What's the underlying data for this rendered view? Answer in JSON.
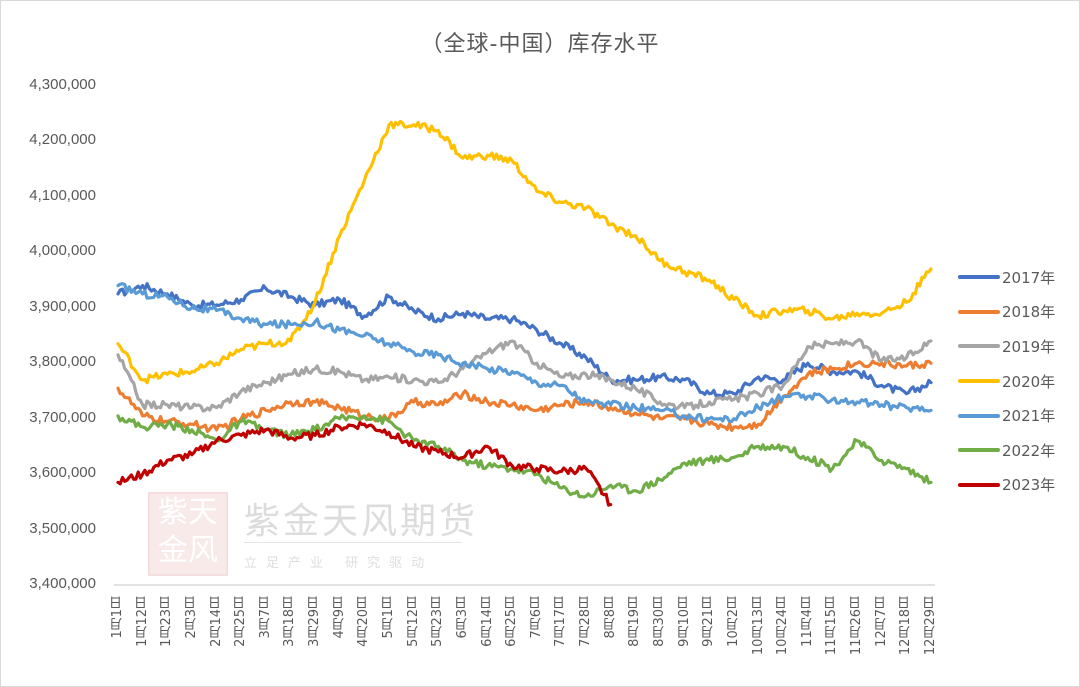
{
  "chart_data": {
    "type": "line",
    "title": "（全球-中国）库存水平",
    "xlabel": "",
    "ylabel": "",
    "ylim": [
      3400000,
      4300000
    ],
    "yticks": [
      "4,300,000",
      "4,200,000",
      "4,100,000",
      "4,000,000",
      "3,900,000",
      "3,800,000",
      "3,700,000",
      "3,600,000",
      "3,500,000",
      "3,400,000"
    ],
    "ytick_values": [
      4300000,
      4200000,
      4100000,
      4000000,
      3900000,
      3800000,
      3700000,
      3600000,
      3500000,
      3400000
    ],
    "categories": [
      "1月1日",
      "1月12日",
      "1月23日",
      "2月3日",
      "2月14日",
      "2月25日",
      "3月7日",
      "3月18日",
      "3月29日",
      "4月9日",
      "4月20日",
      "5月1日",
      "5月12日",
      "5月23日",
      "6月3日",
      "6月14日",
      "6月25日",
      "7月6日",
      "7月17日",
      "7月28日",
      "8月8日",
      "8月19日",
      "8月30日",
      "9月10日",
      "9月21日",
      "10月2日",
      "10月13日",
      "10月24日",
      "11月4日",
      "11月15日",
      "11月26日",
      "12月7日",
      "12月18日",
      "12月29日"
    ],
    "grid": false,
    "legend_position": "right",
    "series": [
      {
        "name": "2017年",
        "color": "#4472C4",
        "values": [
          3925000,
          3940000,
          3925000,
          3905000,
          3905000,
          3915000,
          3935000,
          3920000,
          3905000,
          3915000,
          3885000,
          3920000,
          3895000,
          3880000,
          3890000,
          3880000,
          3880000,
          3860000,
          3835000,
          3810000,
          3770000,
          3770000,
          3775000,
          3770000,
          3745000,
          3745000,
          3775000,
          3770000,
          3800000,
          3785000,
          3785000,
          3760000,
          3745000,
          3765000
        ]
      },
      {
        "name": "2018年",
        "color": "#ED7D31",
        "values": [
          3755000,
          3705000,
          3695000,
          3690000,
          3680000,
          3700000,
          3715000,
          3730000,
          3730000,
          3720000,
          3705000,
          3700000,
          3730000,
          3725000,
          3745000,
          3730000,
          3725000,
          3715000,
          3725000,
          3730000,
          3720000,
          3710000,
          3700000,
          3700000,
          3690000,
          3685000,
          3690000,
          3740000,
          3780000,
          3790000,
          3800000,
          3800000,
          3795000,
          3800000
        ]
      },
      {
        "name": "2019年",
        "color": "#A5A5A5",
        "values": [
          3815000,
          3725000,
          3725000,
          3720000,
          3720000,
          3750000,
          3765000,
          3780000,
          3790000,
          3785000,
          3770000,
          3775000,
          3770000,
          3765000,
          3790000,
          3820000,
          3840000,
          3800000,
          3775000,
          3780000,
          3770000,
          3755000,
          3730000,
          3720000,
          3730000,
          3735000,
          3745000,
          3760000,
          3830000,
          3835000,
          3840000,
          3805000,
          3810000,
          3840000
        ]
      },
      {
        "name": "2020年",
        "color": "#FFC000",
        "values": [
          3835000,
          3770000,
          3780000,
          3785000,
          3800000,
          3825000,
          3835000,
          3840000,
          3910000,
          4030000,
          4130000,
          4230000,
          4230000,
          4220000,
          4170000,
          4175000,
          4165000,
          4110000,
          4090000,
          4080000,
          4050000,
          4030000,
          3985000,
          3965000,
          3950000,
          3915000,
          3885000,
          3895000,
          3895000,
          3880000,
          3890000,
          3890000,
          3910000,
          3970000
        ]
      },
      {
        "name": "2021年",
        "color": "#5B9BD5",
        "values": [
          3940000,
          3925000,
          3920000,
          3900000,
          3895000,
          3880000,
          3870000,
          3870000,
          3875000,
          3860000,
          3850000,
          3835000,
          3820000,
          3815000,
          3800000,
          3790000,
          3785000,
          3765000,
          3760000,
          3730000,
          3725000,
          3720000,
          3715000,
          3705000,
          3700000,
          3700000,
          3720000,
          3740000,
          3740000,
          3735000,
          3730000,
          3725000,
          3720000,
          3715000
        ]
      },
      {
        "name": "2022年",
        "color": "#70AD47",
        "values": [
          3705000,
          3685000,
          3690000,
          3680000,
          3660000,
          3695000,
          3680000,
          3670000,
          3680000,
          3700000,
          3705000,
          3695000,
          3660000,
          3650000,
          3625000,
          3615000,
          3610000,
          3600000,
          3575000,
          3560000,
          3580000,
          3570000,
          3590000,
          3620000,
          3625000,
          3630000,
          3650000,
          3650000,
          3630000,
          3610000,
          3660000,
          3625000,
          3610000,
          3585000
        ]
      },
      {
        "name": "2023年",
        "color": "#C00000",
        "values": [
          3585000,
          3600000,
          3625000,
          3635000,
          3660000,
          3670000,
          3680000,
          3665000,
          3670000,
          3685000,
          3690000,
          3675000,
          3650000,
          3640000,
          3630000,
          3650000,
          3615000,
          3610000,
          3605000,
          3610000,
          3545000,
          null,
          null,
          null,
          null,
          null,
          null,
          null,
          null,
          null,
          null,
          null,
          null,
          null
        ]
      }
    ]
  },
  "watermark": {
    "seal_chars": [
      "紫",
      "天",
      "金",
      "风"
    ],
    "company": "紫金天风期货",
    "slogan": "立足产业 研究驱动"
  }
}
